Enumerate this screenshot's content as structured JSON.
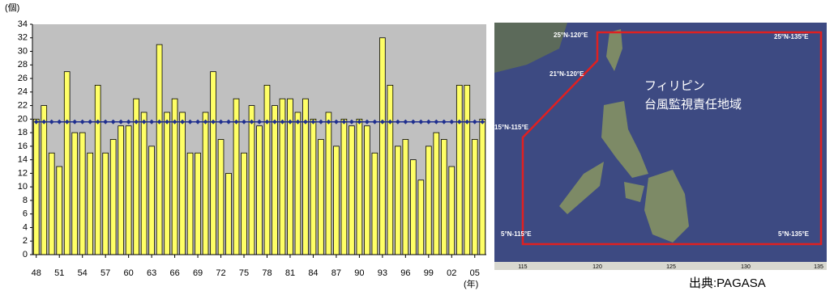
{
  "chart_data": {
    "type": "bar",
    "y_unit_label": "(個)",
    "x_unit_label": "(年)",
    "categories": [
      "48",
      null,
      null,
      "51",
      null,
      null,
      "54",
      null,
      null,
      "57",
      null,
      null,
      "60",
      null,
      null,
      "63",
      null,
      null,
      "66",
      null,
      null,
      "69",
      null,
      null,
      "72",
      null,
      null,
      "75",
      null,
      null,
      "78",
      null,
      null,
      "81",
      null,
      null,
      "84",
      null,
      null,
      "87",
      null,
      null,
      "90",
      null,
      null,
      "93",
      null,
      null,
      "96",
      null,
      null,
      "99",
      null,
      null,
      "02",
      null,
      null,
      "05",
      null
    ],
    "values": [
      20,
      22,
      15,
      13,
      27,
      18,
      18,
      15,
      25,
      15,
      17,
      19,
      19,
      23,
      21,
      16,
      31,
      21,
      23,
      21,
      15,
      15,
      21,
      27,
      17,
      12,
      23,
      15,
      22,
      19,
      25,
      22,
      23,
      23,
      21,
      23,
      20,
      17,
      21,
      16,
      20,
      19,
      20,
      19,
      15,
      32,
      25,
      16,
      17,
      14,
      11,
      16,
      18,
      17,
      13,
      25,
      25,
      17,
      20
    ],
    "color": "#ffff66",
    "reference_line": {
      "value": 19.6,
      "color": "#1f2f8f"
    },
    "ylim": [
      0,
      34
    ],
    "yticks": [
      0,
      2,
      4,
      6,
      8,
      10,
      12,
      14,
      16,
      18,
      20,
      22,
      24,
      26,
      28,
      30,
      32,
      34
    ],
    "plot_background": "#c0c0c0"
  },
  "map": {
    "corner_labels": [
      "25°N-120°E",
      "25°N-135°E",
      "21°N-120°E",
      "15°N-115°E",
      "5°N-115°E",
      "5°N-135°E"
    ],
    "region_name": "フィリピン",
    "region_caption": "台風監視責任地域",
    "axis_labels": [
      "115",
      "120",
      "125",
      "130",
      "135"
    ],
    "source": "出典:PAGASA"
  }
}
